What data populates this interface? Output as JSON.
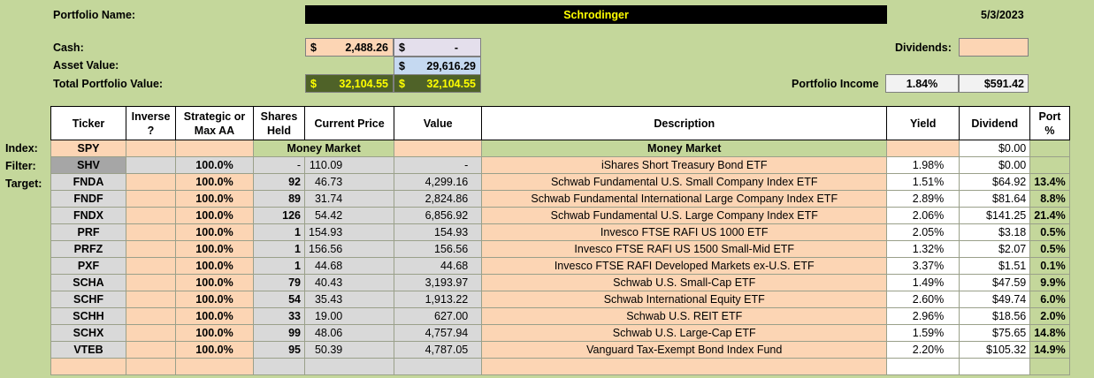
{
  "header": {
    "portfolio_name_label": "Portfolio Name:",
    "portfolio_name": "Schrodinger",
    "date": "5/3/2023",
    "cash_label": "Cash:",
    "cash_currency": "$",
    "cash_value": "2,488.26",
    "cash2_currency": "$",
    "cash2_value": "-",
    "asset_value_label": "Asset Value:",
    "asset_currency": "$",
    "asset_value": "29,616.29",
    "total_label": "Total Portfolio Value:",
    "total1_currency": "$",
    "total1_value": "32,104.55",
    "total2_currency": "$",
    "total2_value": "32,104.55",
    "dividends_label": "Dividends:",
    "portfolio_income_label": "Portfolio Income",
    "income_pct": "1.84%",
    "income_amount": "$591.42"
  },
  "columns": {
    "ticker": "Ticker",
    "inverse": "Inverse ?",
    "strategic": "Strategic or Max AA",
    "shares": "Shares Held",
    "price": "Current Price",
    "value": "Value",
    "description": "Description",
    "yield": "Yield",
    "dividend": "Dividend",
    "port": "Port %"
  },
  "row_labels": {
    "index": "Index:",
    "filter": "Filter:",
    "target": "Target:"
  },
  "index_row": {
    "ticker": "SPY",
    "money_market_1": "Money Market",
    "money_market_2": "Money Market",
    "dividend": "$0.00"
  },
  "filter_row": {
    "ticker": "SHV",
    "strategic": "100.0%",
    "shares": "-",
    "price": "110.09",
    "value": "-",
    "description": "iShares Short Treasury Bond ETF",
    "yield": "1.98%",
    "dividend": "$0.00"
  },
  "rows": [
    {
      "ticker": "FNDA",
      "strategic": "100.0%",
      "shares": "92",
      "price": "46.73",
      "value": "4,299.16",
      "description": "Schwab Fundamental U.S. Small Company Index ETF",
      "yield": "1.51%",
      "dividend": "$64.92",
      "port": "13.4%"
    },
    {
      "ticker": "FNDF",
      "strategic": "100.0%",
      "shares": "89",
      "price": "31.74",
      "value": "2,824.86",
      "description": "Schwab Fundamental International Large Company Index ETF",
      "yield": "2.89%",
      "dividend": "$81.64",
      "port": "8.8%"
    },
    {
      "ticker": "FNDX",
      "strategic": "100.0%",
      "shares": "126",
      "price": "54.42",
      "value": "6,856.92",
      "description": "Schwab Fundamental U.S. Large Company Index ETF",
      "yield": "2.06%",
      "dividend": "$141.25",
      "port": "21.4%"
    },
    {
      "ticker": "PRF",
      "strategic": "100.0%",
      "shares": "1",
      "price": "154.93",
      "value": "154.93",
      "description": "Invesco FTSE RAFI US 1000 ETF",
      "yield": "2.05%",
      "dividend": "$3.18",
      "port": "0.5%"
    },
    {
      "ticker": "PRFZ",
      "strategic": "100.0%",
      "shares": "1",
      "price": "156.56",
      "value": "156.56",
      "description": "Invesco FTSE RAFI US 1500 Small-Mid ETF",
      "yield": "1.32%",
      "dividend": "$2.07",
      "port": "0.5%"
    },
    {
      "ticker": "PXF",
      "strategic": "100.0%",
      "shares": "1",
      "price": "44.68",
      "value": "44.68",
      "description": "Invesco FTSE RAFI Developed Markets ex-U.S. ETF",
      "yield": "3.37%",
      "dividend": "$1.51",
      "port": "0.1%"
    },
    {
      "ticker": "SCHA",
      "strategic": "100.0%",
      "shares": "79",
      "price": "40.43",
      "value": "3,193.97",
      "description": "Schwab U.S. Small-Cap ETF",
      "yield": "1.49%",
      "dividend": "$47.59",
      "port": "9.9%"
    },
    {
      "ticker": "SCHF",
      "strategic": "100.0%",
      "shares": "54",
      "price": "35.43",
      "value": "1,913.22",
      "description": "Schwab International Equity ETF",
      "yield": "2.60%",
      "dividend": "$49.74",
      "port": "6.0%"
    },
    {
      "ticker": "SCHH",
      "strategic": "100.0%",
      "shares": "33",
      "price": "19.00",
      "value": "627.00",
      "description": "Schwab U.S. REIT ETF",
      "yield": "2.96%",
      "dividend": "$18.56",
      "port": "2.0%"
    },
    {
      "ticker": "SCHX",
      "strategic": "100.0%",
      "shares": "99",
      "price": "48.06",
      "value": "4,757.94",
      "description": "Schwab U.S. Large-Cap ETF",
      "yield": "1.59%",
      "dividend": "$75.65",
      "port": "14.8%"
    },
    {
      "ticker": "VTEB",
      "strategic": "100.0%",
      "shares": "95",
      "price": "50.39",
      "value": "4,787.05",
      "description": "Vanguard Tax-Exempt Bond Index Fund",
      "yield": "2.20%",
      "dividend": "$105.32",
      "port": "14.9%"
    }
  ],
  "colors": {
    "background": "#c4d79b",
    "peach": "#fcd5b4",
    "lavender": "#e4dfec",
    "light_blue": "#c5d9f1",
    "dark_green": "#4f6228",
    "yellow_text": "#ffff00"
  }
}
